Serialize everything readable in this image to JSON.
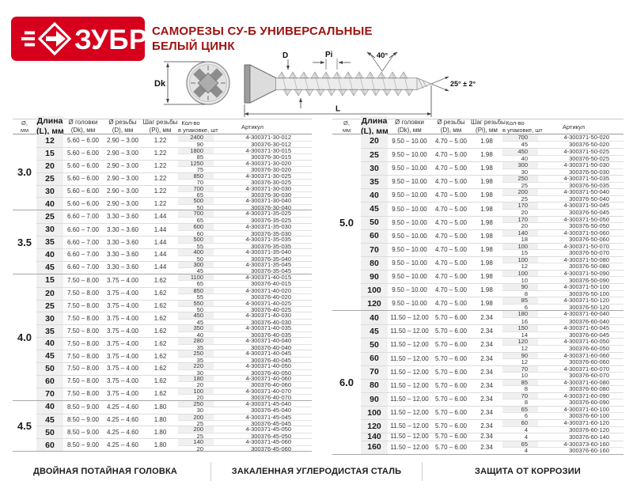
{
  "page": {
    "title_line1": "САМОРЕЗЫ СУ-Б УНИВЕРСАЛЬНЫЕ",
    "title_line2": "БЕЛЫЙ ЦИНК"
  },
  "logo": {
    "text": "ЗУБР"
  },
  "colors": {
    "brand_red": "#d6001c",
    "title_red": "#9e1310"
  },
  "diagram": {
    "dk": "Dk",
    "d": "D",
    "pi": "Pi",
    "top_angle": "40°",
    "tip_angle": "25° ± 2°",
    "length": "L"
  },
  "table_headers": {
    "diameter": [
      "Ø,",
      "мм"
    ],
    "length": [
      "Длина",
      "(L), мм"
    ],
    "head": [
      "Ø головки",
      "(Dk), мм"
    ],
    "thread": [
      "Ø резьбы",
      "(D), мм"
    ],
    "pitch": [
      "Шаг резьбы",
      "(Pi), мм"
    ],
    "qty": [
      "Кол-во",
      "в упаковке, шт"
    ],
    "article": [
      "",
      "Артикул"
    ]
  },
  "tables": {
    "left": {
      "groups": [
        {
          "diameter": "3.0",
          "head": "5.60 – 6.00",
          "thread": "2.90 – 3.00",
          "pitch": "1.22",
          "rows": [
            {
              "len": "12",
              "packs": [
                [
                  "2400",
                  "4-300371-30-012"
                ],
                [
                  "90",
                  "300376-30-012"
                ]
              ]
            },
            {
              "len": "15",
              "packs": [
                [
                  "1800",
                  "4-300371-30-015"
                ],
                [
                  "85",
                  "300376-30-015"
                ]
              ]
            },
            {
              "len": "20",
              "packs": [
                [
                  "1250",
                  "4-300371-30-020"
                ],
                [
                  "75",
                  "300376-30-020"
                ]
              ]
            },
            {
              "len": "25",
              "packs": [
                [
                  "850",
                  "4-300371-30-025"
                ],
                [
                  "70",
                  "300376-30-025"
                ]
              ]
            },
            {
              "len": "30",
              "packs": [
                [
                  "700",
                  "4-300371-30-030"
                ],
                [
                  "65",
                  "300376-30-030"
                ]
              ]
            },
            {
              "len": "40",
              "packs": [
                [
                  "500",
                  "4-300371-30-040"
                ],
                [
                  "50",
                  "300376-30-040"
                ]
              ]
            }
          ]
        },
        {
          "diameter": "3.5",
          "head": "6.60 – 7.00",
          "thread": "3.30 – 3.60",
          "pitch": "1.44",
          "rows": [
            {
              "len": "25",
              "packs": [
                [
                  "700",
                  "4-300371-35-025"
                ],
                [
                  "65",
                  "300376-35-025"
                ]
              ]
            },
            {
              "len": "30",
              "packs": [
                [
                  "600",
                  "4-300371-35-030"
                ],
                [
                  "60",
                  "300376-35-030"
                ]
              ]
            },
            {
              "len": "35",
              "packs": [
                [
                  "500",
                  "4-300371-35-035"
                ],
                [
                  "55",
                  "300376-35-035"
                ]
              ]
            },
            {
              "len": "40",
              "packs": [
                [
                  "400",
                  "4-300371-35-040"
                ],
                [
                  "50",
                  "300376-35-040"
                ]
              ]
            },
            {
              "len": "45",
              "packs": [
                [
                  "300",
                  "4-300371-35-045"
                ],
                [
                  "45",
                  "300376-35-045"
                ]
              ]
            }
          ]
        },
        {
          "diameter": "4.0",
          "head": "7.50 – 8.00",
          "thread": "3.75 – 4.00",
          "pitch": "1.62",
          "rows": [
            {
              "len": "15",
              "packs": [
                [
                  "1100",
                  "4-300371-40-015"
                ],
                [
                  "65",
                  "300376-40-015"
                ]
              ]
            },
            {
              "len": "20",
              "packs": [
                [
                  "850",
                  "4-300371-40-020"
                ],
                [
                  "55",
                  "300376-40-020"
                ]
              ]
            },
            {
              "len": "25",
              "packs": [
                [
                  "550",
                  "4-300371-40-025"
                ],
                [
                  "50",
                  "300376-40-025"
                ]
              ]
            },
            {
              "len": "30",
              "packs": [
                [
                  "450",
                  "4-300371-40-030"
                ],
                [
                  "45",
                  "300376-40-030"
                ]
              ]
            },
            {
              "len": "35",
              "packs": [
                [
                  "350",
                  "4-300371-40-035"
                ],
                [
                  "40",
                  "300376-40-035"
                ]
              ]
            },
            {
              "len": "40",
              "packs": [
                [
                  "280",
                  "4-300371-40-040"
                ],
                [
                  "35",
                  "300376-40-040"
                ]
              ]
            },
            {
              "len": "45",
              "packs": [
                [
                  "250",
                  "4-300371-40-045"
                ],
                [
                  "35",
                  "300376-40-045"
                ]
              ]
            },
            {
              "len": "50",
              "packs": [
                [
                  "220",
                  "4-300371-40-050"
                ],
                [
                  "30",
                  "300376-40-050"
                ]
              ]
            },
            {
              "len": "60",
              "packs": [
                [
                  "180",
                  "4-300371-40-060"
                ],
                [
                  "20",
                  "300376-40-060"
                ]
              ]
            },
            {
              "len": "70",
              "packs": [
                [
                  "100",
                  "4-300371-40-070"
                ],
                [
                  "20",
                  "300376-40-070"
                ]
              ]
            }
          ]
        },
        {
          "diameter": "4.5",
          "head": "8.50 – 9.00",
          "thread": "4.25 – 4.60",
          "pitch": "1.80",
          "rows": [
            {
              "len": "40",
              "packs": [
                [
                  "250",
                  "4-300371-45-040"
                ],
                [
                  "30",
                  "300376-45-040"
                ]
              ]
            },
            {
              "len": "45",
              "packs": [
                [
                  "200",
                  "4-300371-45-045"
                ],
                [
                  "25",
                  "300376-45-045"
                ]
              ]
            },
            {
              "len": "50",
              "packs": [
                [
                  "200",
                  "4-300371-45-050"
                ],
                [
                  "25",
                  "300376-45-050"
                ]
              ]
            },
            {
              "len": "60",
              "packs": [
                [
                  "140",
                  "4-300371-45-060"
                ],
                [
                  "20",
                  "300376-45-060"
                ]
              ]
            }
          ]
        }
      ]
    },
    "right": {
      "groups": [
        {
          "diameter": "5.0",
          "head": "9.50 – 10.00",
          "thread": "4.70 – 5.00",
          "pitch": "1.98",
          "rows": [
            {
              "len": "20",
              "packs": [
                [
                  "700",
                  "4-300371-50-020"
                ],
                [
                  "45",
                  "300376-50-020"
                ]
              ]
            },
            {
              "len": "25",
              "packs": [
                [
                  "450",
                  "4-300371-50-025"
                ],
                [
                  "40",
                  "300376-50-025"
                ]
              ]
            },
            {
              "len": "30",
              "packs": [
                [
                  "300",
                  "4-300371-50-030"
                ],
                [
                  "30",
                  "300376-50-030"
                ]
              ]
            },
            {
              "len": "35",
              "packs": [
                [
                  "250",
                  "4-300371-50-035"
                ],
                [
                  "25",
                  "300376-50-035"
                ]
              ]
            },
            {
              "len": "40",
              "packs": [
                [
                  "200",
                  "4-300371-50-040"
                ],
                [
                  "25",
                  "300376-50-040"
                ]
              ]
            },
            {
              "len": "45",
              "packs": [
                [
                  "170",
                  "4-300371-50-045"
                ],
                [
                  "20",
                  "300376-50-045"
                ]
              ]
            },
            {
              "len": "50",
              "packs": [
                [
                  "170",
                  "4-300371-50-050"
                ],
                [
                  "20",
                  "300376-50-050"
                ]
              ]
            },
            {
              "len": "60",
              "packs": [
                [
                  "140",
                  "4-300371-50-060"
                ],
                [
                  "18",
                  "300376-50-060"
                ]
              ]
            },
            {
              "len": "70",
              "packs": [
                [
                  "100",
                  "4-300371-50-070"
                ],
                [
                  "15",
                  "300376-50-070"
                ]
              ]
            },
            {
              "len": "80",
              "packs": [
                [
                  "100",
                  "4-300371-50-080"
                ],
                [
                  "12",
                  "300376-50-080"
                ]
              ]
            },
            {
              "len": "90",
              "packs": [
                [
                  "100",
                  "4-300371-50-090"
                ],
                [
                  "10",
                  "300376-50-090"
                ]
              ]
            },
            {
              "len": "100",
              "packs": [
                [
                  "90",
                  "4-300371-50-100"
                ],
                [
                  "8",
                  "300376-50-100"
                ]
              ]
            },
            {
              "len": "120",
              "packs": [
                [
                  "85",
                  "4-300371-50-120"
                ],
                [
                  "6",
                  "300376-50-120"
                ]
              ]
            }
          ]
        },
        {
          "diameter": "6.0",
          "head": "11.50 – 12.00",
          "thread": "5.70 – 6.00",
          "pitch": "2.34",
          "rows": [
            {
              "len": "40",
              "packs": [
                [
                  "180",
                  "4-300371-60-040"
                ],
                [
                  "16",
                  "300376-60-040"
                ]
              ]
            },
            {
              "len": "45",
              "packs": [
                [
                  "150",
                  "4-300371-60-045"
                ],
                [
                  "14",
                  "300376-60-045"
                ]
              ]
            },
            {
              "len": "50",
              "packs": [
                [
                  "120",
                  "4-300371-60-050"
                ],
                [
                  "12",
                  "300376-60-050"
                ]
              ]
            },
            {
              "len": "60",
              "packs": [
                [
                  "90",
                  "4-300371-60-060"
                ],
                [
                  "12",
                  "300376-60-060"
                ]
              ]
            },
            {
              "len": "70",
              "packs": [
                [
                  "70",
                  "4-300371-60-070"
                ],
                [
                  "10",
                  "300376-60-070"
                ]
              ]
            },
            {
              "len": "80",
              "packs": [
                [
                  "85",
                  "4-300371-60-080"
                ],
                [
                  "8",
                  "300376-60-080"
                ]
              ]
            },
            {
              "len": "90",
              "packs": [
                [
                  "70",
                  "4-300371-60-090"
                ],
                [
                  "8",
                  "300376-60-090"
                ]
              ]
            },
            {
              "len": "100",
              "packs": [
                [
                  "65",
                  "4-300371-60-100"
                ],
                [
                  "6",
                  "300376-60-100"
                ]
              ]
            },
            {
              "len": "120",
              "packs": [
                [
                  "60",
                  "4-300371-60-120"
                ],
                [
                  "4",
                  "300376-60-120"
                ]
              ]
            },
            {
              "len": "140",
              "packs": [
                [
                  "4",
                  "300376-60-140"
                ]
              ]
            },
            {
              "len": "160",
              "packs": [
                [
                  "65",
                  "4-300373-60-160"
                ],
                [
                  "4",
                  "300376-60-160"
                ]
              ]
            }
          ]
        }
      ]
    }
  },
  "footer": {
    "items": [
      "ДВОЙНАЯ ПОТАЙНАЯ ГОЛОВКА",
      "ЗАКАЛЕННАЯ УГЛЕРОДИСТАЯ СТАЛЬ",
      "ЗАЩИТА ОТ КОРРОЗИИ"
    ]
  }
}
